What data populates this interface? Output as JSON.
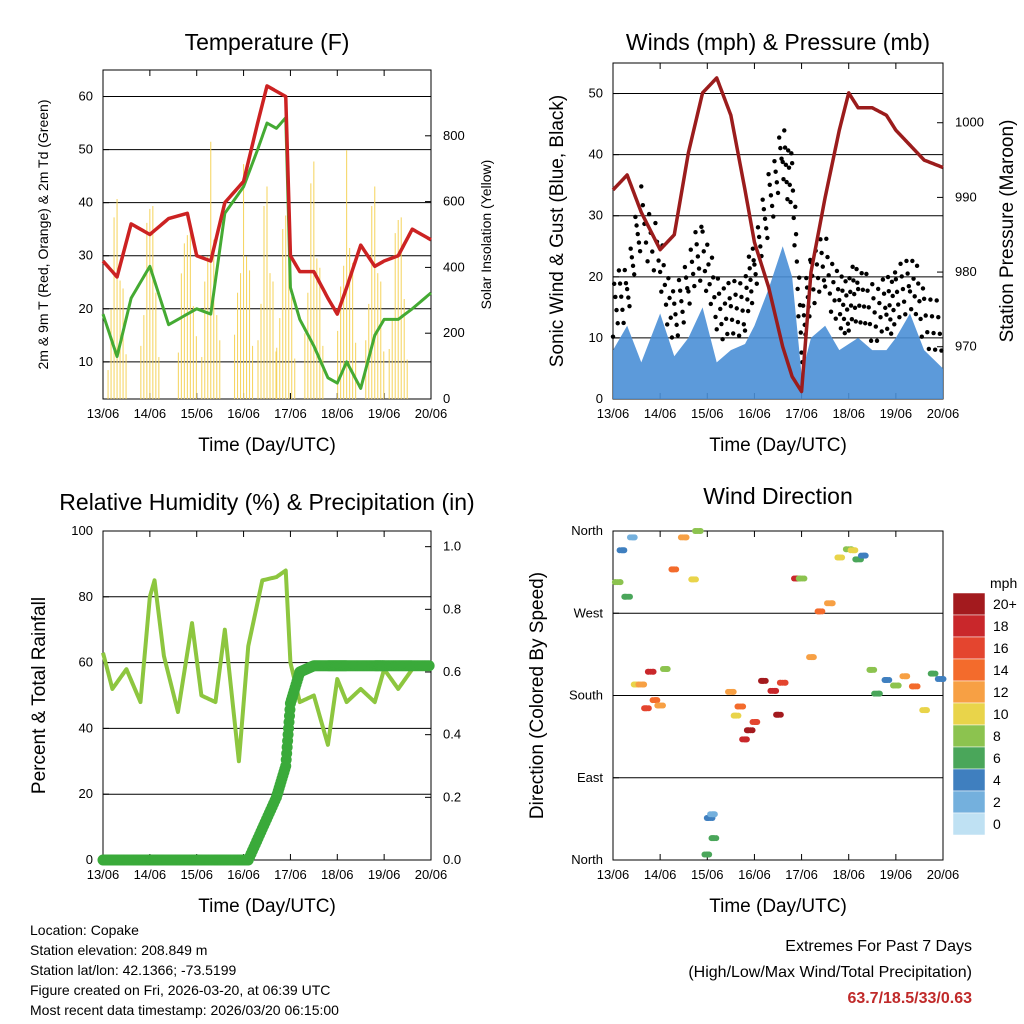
{
  "x_ticks": [
    "13/06",
    "14/06",
    "15/06",
    "16/06",
    "17/06",
    "18/06",
    "19/06",
    "20/06"
  ],
  "panels": {
    "temperature": {
      "title": "Temperature (F)",
      "xlabel": "Time (Day/UTC)",
      "ylabel_left": "2m & 9m T (Red, Orange) & 2m Td (Green)",
      "ylabel_right": "Solar Insolation (Yellow)",
      "left_ticks": [
        "10",
        "20",
        "30",
        "40",
        "50",
        "60"
      ],
      "right_ticks": [
        "0",
        "200",
        "400",
        "600",
        "800"
      ]
    },
    "winds": {
      "title": "Winds (mph) & Pressure (mb)",
      "xlabel": "Time (Day/UTC)",
      "ylabel_left": "Sonic Wind & Gust (Blue, Black)",
      "ylabel_right": "Station Pressure (Maroon)",
      "left_ticks": [
        "0",
        "10",
        "20",
        "30",
        "40",
        "50"
      ],
      "right_ticks": [
        "970",
        "980",
        "990",
        "1000"
      ]
    },
    "humidity": {
      "title": "Relative Humidity (%) & Precipitation (in)",
      "xlabel": "Time (Day/UTC)",
      "ylabel_left": "Percent & Total Rainfall",
      "left_ticks": [
        "0",
        "20",
        "40",
        "60",
        "80",
        "100"
      ],
      "right_ticks": [
        "0.0",
        "0.2",
        "0.4",
        "0.6",
        "0.8",
        "1.0"
      ]
    },
    "direction": {
      "title": "Wind Direction",
      "xlabel": "Time (Day/UTC)",
      "ylabel_left": "Direction (Colored By Speed)",
      "left_ticks": [
        "North",
        "East",
        "South",
        "West",
        "North"
      ],
      "colorbar_title": "mph",
      "colorbar_labels": [
        "20+",
        "18",
        "16",
        "14",
        "12",
        "10",
        "8",
        "6",
        "4",
        "2",
        "0"
      ],
      "colorbar_colors": [
        "#a31a1e",
        "#c9272b",
        "#e4452f",
        "#f36b2c",
        "#f7a044",
        "#e9d44a",
        "#8cc34f",
        "#4aa65a",
        "#3f7fbf",
        "#74b0dd",
        "#bfe1f3"
      ]
    }
  },
  "chart_data": [
    {
      "type": "line",
      "title": "Temperature (F)",
      "xlabel": "Time (Day/UTC)",
      "ylabel": "2m & 9m T (Red, Orange) & 2m Td (Green)",
      "ylabel_right": "Solar Insolation (Yellow)",
      "ylim": [
        3,
        65
      ],
      "ylim_right": [
        0,
        1000
      ],
      "x": [
        0,
        0.3,
        0.6,
        1,
        1.4,
        1.8,
        2,
        2.3,
        2.6,
        3,
        3.3,
        3.5,
        3.7,
        3.9,
        4,
        4.2,
        4.5,
        4.8,
        5,
        5.2,
        5.5,
        5.8,
        6,
        6.3,
        6.6,
        7
      ],
      "series": [
        {
          "name": "2m T",
          "color": "#cc2222",
          "values": [
            29,
            26,
            36,
            34,
            37,
            38,
            30,
            29,
            40,
            44,
            55,
            62,
            61,
            60,
            30,
            27,
            27,
            22,
            19,
            24,
            32,
            28,
            29,
            30,
            35,
            33
          ]
        },
        {
          "name": "2m Td",
          "color": "#44aa33",
          "values": [
            19,
            11,
            22,
            28,
            17,
            19,
            20,
            19,
            38,
            43,
            50,
            55,
            54,
            56,
            24,
            18,
            13,
            7,
            6,
            10,
            5,
            15,
            18,
            18,
            20,
            23
          ]
        },
        {
          "name": "Solar Insolation",
          "color": "#f5d35a",
          "axis": "right",
          "values": [
            0,
            800,
            0,
            850,
            0,
            830,
            0,
            850,
            0,
            850,
            0,
            850,
            0,
            820,
            0,
            0,
            950,
            0,
            0,
            900,
            0,
            850,
            0,
            800,
            0,
            0
          ]
        }
      ]
    },
    {
      "type": "line",
      "title": "Winds (mph) & Pressure (mb)",
      "xlabel": "Time (Day/UTC)",
      "ylabel": "Sonic Wind & Gust (Blue, Black)",
      "ylabel_right": "Station Pressure (Maroon)",
      "ylim": [
        0,
        55
      ],
      "ylim_right": [
        963,
        1008
      ],
      "x": [
        0,
        0.3,
        0.6,
        1,
        1.3,
        1.6,
        1.9,
        2.2,
        2.5,
        2.8,
        3,
        3.3,
        3.6,
        3.8,
        4,
        4.2,
        4.5,
        4.8,
        5,
        5.2,
        5.5,
        5.8,
        6,
        6.3,
        6.6,
        7
      ],
      "series": [
        {
          "name": "Sonic Wind",
          "color": "#4a8fd6",
          "values": [
            8,
            12,
            6,
            14,
            7,
            10,
            15,
            6,
            8,
            9,
            12,
            18,
            25,
            20,
            4,
            10,
            12,
            8,
            9,
            10,
            8,
            8,
            10,
            14,
            8,
            5
          ]
        },
        {
          "name": "Gust",
          "color": "#000000",
          "values": [
            15,
            18,
            30,
            22,
            12,
            20,
            25,
            15,
            14,
            16,
            22,
            32,
            40,
            35,
            10,
            20,
            22,
            15,
            16,
            18,
            14,
            15,
            16,
            20,
            14,
            10
          ]
        },
        {
          "name": "Station Pressure",
          "color": "#9b1c1c",
          "axis": "right",
          "values": [
            991,
            993,
            988,
            983,
            985,
            996,
            1004,
            1006,
            1001,
            991,
            984,
            978,
            970,
            966,
            964,
            980,
            990,
            999,
            1004,
            1002,
            1002,
            1001,
            999,
            997,
            995,
            994
          ]
        }
      ]
    },
    {
      "type": "line",
      "title": "Relative Humidity (%) & Precipitation (in)",
      "xlabel": "Time (Day/UTC)",
      "ylabel": "Percent & Total Rainfall",
      "ylim": [
        0,
        100
      ],
      "ylim_right": [
        0.0,
        1.05
      ],
      "x": [
        0,
        0.2,
        0.5,
        0.8,
        1,
        1.1,
        1.3,
        1.6,
        1.9,
        2.1,
        2.4,
        2.6,
        2.9,
        3.1,
        3.4,
        3.7,
        3.9,
        4,
        4.2,
        4.5,
        4.8,
        5,
        5.2,
        5.5,
        5.8,
        6,
        6.3,
        6.6,
        7
      ],
      "series": [
        {
          "name": "Relative Humidity",
          "color": "#8dc63f",
          "values": [
            63,
            52,
            58,
            48,
            80,
            85,
            62,
            45,
            72,
            50,
            48,
            70,
            30,
            65,
            85,
            86,
            88,
            60,
            48,
            50,
            35,
            55,
            48,
            52,
            48,
            58,
            52,
            58,
            60
          ]
        },
        {
          "name": "Total Precipitation",
          "color": "#3aaa3a",
          "axis": "right",
          "values": [
            0,
            0,
            0,
            0,
            0,
            0,
            0,
            0,
            0,
            0,
            0,
            0,
            0,
            0,
            0.1,
            0.2,
            0.3,
            0.5,
            0.6,
            0.62,
            0.62,
            0.62,
            0.62,
            0.62,
            0.62,
            0.62,
            0.62,
            0.62,
            0.62
          ]
        }
      ]
    },
    {
      "type": "scatter",
      "title": "Wind Direction",
      "xlabel": "Time (Day/UTC)",
      "ylabel": "Direction (Colored By Speed)",
      "categories_y": [
        "North",
        "East",
        "South",
        "West",
        "North"
      ],
      "ylim": [
        0,
        360
      ],
      "colorbar": {
        "label": "mph",
        "range": [
          0,
          20
        ]
      },
      "points": [
        {
          "x": 0.1,
          "y": 320,
          "speed": 8
        },
        {
          "x": 0.2,
          "y": 335,
          "speed": 4
        },
        {
          "x": 0.3,
          "y": 300,
          "speed": 6
        },
        {
          "x": 0.4,
          "y": 345,
          "speed": 2
        },
        {
          "x": 0.5,
          "y": 200,
          "speed": 10
        },
        {
          "x": 0.6,
          "y": 180,
          "speed": 12
        },
        {
          "x": 0.7,
          "y": 170,
          "speed": 16
        },
        {
          "x": 0.8,
          "y": 190,
          "speed": 18
        },
        {
          "x": 0.9,
          "y": 175,
          "speed": 14
        },
        {
          "x": 1.0,
          "y": 185,
          "speed": 12
        },
        {
          "x": 1.1,
          "y": 205,
          "speed": 8
        },
        {
          "x": 1.3,
          "y": 330,
          "speed": 14
        },
        {
          "x": 1.5,
          "y": 345,
          "speed": 12
        },
        {
          "x": 1.7,
          "y": 315,
          "speed": 10
        },
        {
          "x": 1.8,
          "y": 355,
          "speed": 8
        },
        {
          "x": 2.0,
          "y": 10,
          "speed": 6
        },
        {
          "x": 2.05,
          "y": 30,
          "speed": 4
        },
        {
          "x": 2.1,
          "y": 50,
          "speed": 2
        },
        {
          "x": 2.15,
          "y": 40,
          "speed": 6
        },
        {
          "x": 2.5,
          "y": 180,
          "speed": 12
        },
        {
          "x": 2.6,
          "y": 170,
          "speed": 10
        },
        {
          "x": 2.7,
          "y": 160,
          "speed": 14
        },
        {
          "x": 2.8,
          "y": 140,
          "speed": 18
        },
        {
          "x": 2.9,
          "y": 130,
          "speed": 20
        },
        {
          "x": 3.0,
          "y": 155,
          "speed": 16
        },
        {
          "x": 3.2,
          "y": 180,
          "speed": 20
        },
        {
          "x": 3.4,
          "y": 185,
          "speed": 18
        },
        {
          "x": 3.5,
          "y": 175,
          "speed": 20
        },
        {
          "x": 3.6,
          "y": 190,
          "speed": 16
        },
        {
          "x": 3.9,
          "y": 320,
          "speed": 18
        },
        {
          "x": 4.0,
          "y": 300,
          "speed": 8
        },
        {
          "x": 4.2,
          "y": 230,
          "speed": 12
        },
        {
          "x": 4.4,
          "y": 260,
          "speed": 14
        },
        {
          "x": 4.6,
          "y": 285,
          "speed": 12
        },
        {
          "x": 4.8,
          "y": 315,
          "speed": 10
        },
        {
          "x": 5.0,
          "y": 340,
          "speed": 8
        },
        {
          "x": 5.1,
          "y": 355,
          "speed": 10
        },
        {
          "x": 5.2,
          "y": 325,
          "speed": 6
        },
        {
          "x": 5.3,
          "y": 345,
          "speed": 4
        },
        {
          "x": 5.5,
          "y": 200,
          "speed": 8
        },
        {
          "x": 5.6,
          "y": 190,
          "speed": 6
        },
        {
          "x": 5.8,
          "y": 185,
          "speed": 4
        },
        {
          "x": 6.0,
          "y": 195,
          "speed": 8
        },
        {
          "x": 6.2,
          "y": 185,
          "speed": 12
        },
        {
          "x": 6.4,
          "y": 190,
          "speed": 14
        },
        {
          "x": 6.6,
          "y": 180,
          "speed": 10
        },
        {
          "x": 6.8,
          "y": 200,
          "speed": 6
        },
        {
          "x": 6.95,
          "y": 210,
          "speed": 4
        }
      ]
    }
  ],
  "info": {
    "location": "Location: Copake",
    "elevation": "Station elevation: 208.849 m",
    "latlon": "Station lat/lon: 42.1366; -73.5199",
    "created": "Figure created on Fri, 2026-03-20, at 06:39 UTC",
    "timestamp": "Most recent data timestamp: 2026/03/20 06:15:00",
    "extremes_title": "Extremes For Past 7 Days",
    "extremes_subtitle": "(High/Low/Max Wind/Total Precipitation)",
    "extremes_values": "63.7/18.5/33/0.63"
  }
}
